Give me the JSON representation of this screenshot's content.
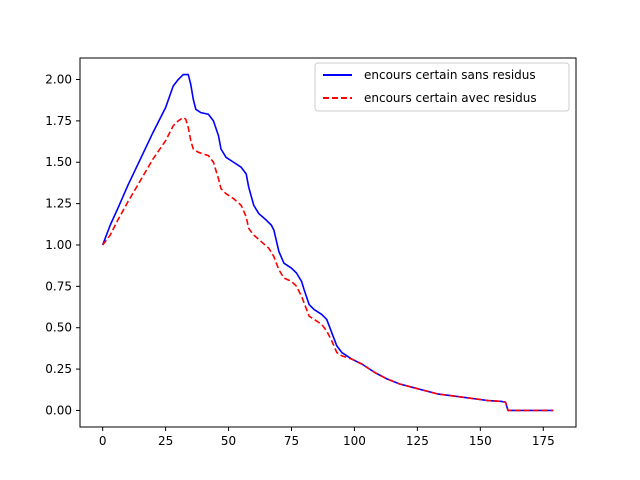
{
  "chart_data": {
    "type": "line",
    "title": "",
    "xlabel": "",
    "ylabel": "",
    "xlim": [
      -9,
      188
    ],
    "ylim": [
      -0.1,
      2.13
    ],
    "xticks": [
      0,
      25,
      50,
      75,
      100,
      125,
      150,
      175
    ],
    "xtick_labels": [
      "0",
      "25",
      "50",
      "75",
      "100",
      "125",
      "150",
      "175"
    ],
    "yticks": [
      0.0,
      0.25,
      0.5,
      0.75,
      1.0,
      1.25,
      1.5,
      1.75,
      2.0
    ],
    "ytick_labels": [
      "0.00",
      "0.25",
      "0.50",
      "0.75",
      "1.00",
      "1.25",
      "1.50",
      "1.75",
      "2.00"
    ],
    "grid": false,
    "legend_position": "upper right",
    "series": [
      {
        "name": "encours certain sans residus",
        "color": "#0000ff",
        "style": "solid",
        "points": [
          [
            0,
            1.0
          ],
          [
            3,
            1.12
          ],
          [
            6,
            1.22
          ],
          [
            10,
            1.36
          ],
          [
            15,
            1.52
          ],
          [
            20,
            1.68
          ],
          [
            25,
            1.83
          ],
          [
            28,
            1.96
          ],
          [
            30,
            2.0
          ],
          [
            32,
            2.03
          ],
          [
            34,
            2.03
          ],
          [
            35,
            1.97
          ],
          [
            36,
            1.88
          ],
          [
            37,
            1.82
          ],
          [
            39,
            1.8
          ],
          [
            42,
            1.79
          ],
          [
            44,
            1.75
          ],
          [
            46,
            1.66
          ],
          [
            47,
            1.58
          ],
          [
            49,
            1.53
          ],
          [
            52,
            1.5
          ],
          [
            55,
            1.47
          ],
          [
            57,
            1.43
          ],
          [
            58,
            1.35
          ],
          [
            60,
            1.24
          ],
          [
            62,
            1.19
          ],
          [
            65,
            1.15
          ],
          [
            67,
            1.12
          ],
          [
            68,
            1.09
          ],
          [
            70,
            0.96
          ],
          [
            72,
            0.89
          ],
          [
            75,
            0.86
          ],
          [
            77,
            0.83
          ],
          [
            79,
            0.78
          ],
          [
            80,
            0.73
          ],
          [
            82,
            0.64
          ],
          [
            84,
            0.61
          ],
          [
            87,
            0.58
          ],
          [
            89,
            0.55
          ],
          [
            91,
            0.47
          ],
          [
            93,
            0.39
          ],
          [
            95,
            0.35
          ],
          [
            99,
            0.31
          ],
          [
            103,
            0.28
          ],
          [
            108,
            0.23
          ],
          [
            113,
            0.19
          ],
          [
            118,
            0.16
          ],
          [
            123,
            0.14
          ],
          [
            128,
            0.12
          ],
          [
            133,
            0.1
          ],
          [
            138,
            0.09
          ],
          [
            143,
            0.08
          ],
          [
            148,
            0.07
          ],
          [
            153,
            0.06
          ],
          [
            158,
            0.055
          ],
          [
            160,
            0.05
          ],
          [
            161,
            0.0
          ],
          [
            170,
            0.0
          ],
          [
            179,
            0.0
          ]
        ]
      },
      {
        "name": "encours certain avec residus",
        "color": "#ff0000",
        "style": "dashed",
        "points": [
          [
            0,
            1.0
          ],
          [
            3,
            1.06
          ],
          [
            6,
            1.15
          ],
          [
            10,
            1.26
          ],
          [
            15,
            1.39
          ],
          [
            20,
            1.52
          ],
          [
            25,
            1.63
          ],
          [
            28,
            1.72
          ],
          [
            30,
            1.75
          ],
          [
            32,
            1.77
          ],
          [
            33,
            1.76
          ],
          [
            34,
            1.71
          ],
          [
            35,
            1.63
          ],
          [
            36,
            1.58
          ],
          [
            38,
            1.56
          ],
          [
            42,
            1.54
          ],
          [
            44,
            1.5
          ],
          [
            46,
            1.4
          ],
          [
            47,
            1.34
          ],
          [
            49,
            1.31
          ],
          [
            52,
            1.28
          ],
          [
            55,
            1.24
          ],
          [
            57,
            1.17
          ],
          [
            58,
            1.1
          ],
          [
            60,
            1.06
          ],
          [
            63,
            1.02
          ],
          [
            66,
            0.98
          ],
          [
            68,
            0.93
          ],
          [
            70,
            0.85
          ],
          [
            72,
            0.8
          ],
          [
            75,
            0.78
          ],
          [
            77,
            0.75
          ],
          [
            79,
            0.69
          ],
          [
            80,
            0.65
          ],
          [
            82,
            0.57
          ],
          [
            85,
            0.54
          ],
          [
            87,
            0.52
          ],
          [
            89,
            0.48
          ],
          [
            91,
            0.42
          ],
          [
            93,
            0.35
          ],
          [
            95,
            0.33
          ],
          [
            99,
            0.31
          ],
          [
            103,
            0.28
          ],
          [
            108,
            0.23
          ],
          [
            113,
            0.19
          ],
          [
            118,
            0.16
          ],
          [
            123,
            0.14
          ],
          [
            128,
            0.12
          ],
          [
            133,
            0.1
          ],
          [
            138,
            0.09
          ],
          [
            143,
            0.08
          ],
          [
            148,
            0.07
          ],
          [
            153,
            0.06
          ],
          [
            158,
            0.055
          ],
          [
            160,
            0.05
          ],
          [
            161,
            0.0
          ],
          [
            170,
            0.0
          ],
          [
            179,
            0.0
          ]
        ]
      }
    ]
  }
}
